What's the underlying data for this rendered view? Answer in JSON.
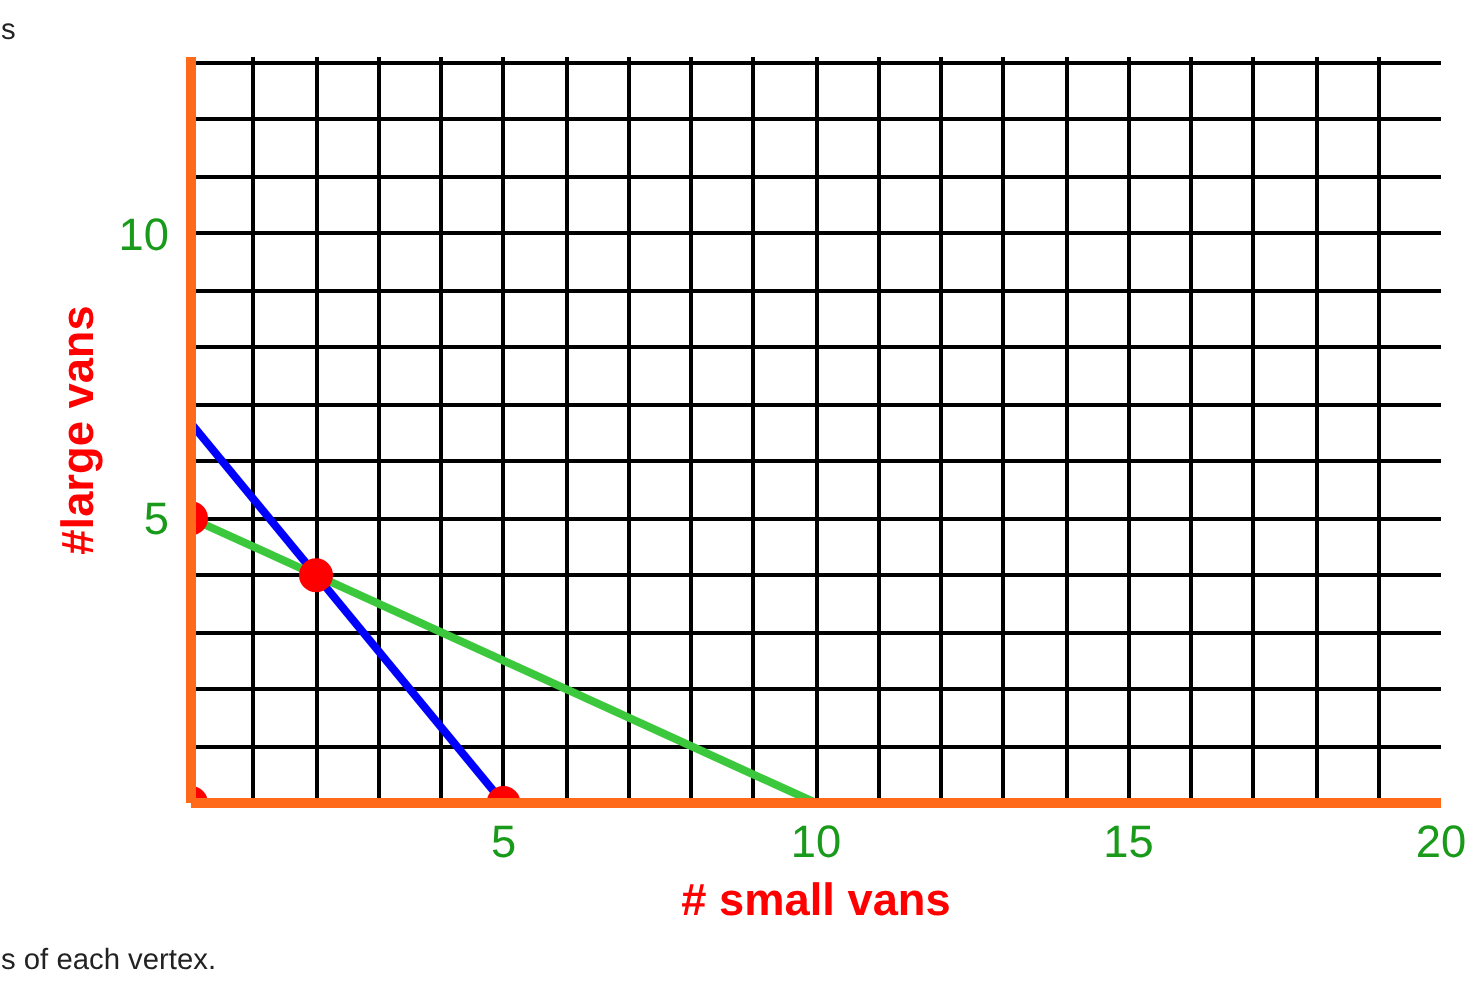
{
  "chart_data": {
    "type": "line",
    "xlabel": "# small vans",
    "ylabel": "#large vans",
    "xlim": [
      0,
      20
    ],
    "ylim": [
      0,
      13.1
    ],
    "xticks": [
      {
        "value": 1,
        "label": null
      },
      {
        "value": 2,
        "label": null
      },
      {
        "value": 3,
        "label": null
      },
      {
        "value": 4,
        "label": null
      },
      5,
      {
        "value": 6,
        "label": null
      },
      {
        "value": 7,
        "label": null
      },
      {
        "value": 8,
        "label": null
      },
      {
        "value": 9,
        "label": null
      },
      10,
      {
        "value": 11,
        "label": null
      },
      {
        "value": 12,
        "label": null
      },
      {
        "value": 13,
        "label": null
      },
      {
        "value": 14,
        "label": null
      },
      15,
      {
        "value": 16,
        "label": null
      },
      {
        "value": 17,
        "label": null
      },
      {
        "value": 18,
        "label": null
      },
      {
        "value": 19,
        "label": null
      },
      20
    ],
    "yticks": [
      {
        "value": 1,
        "label": null
      },
      {
        "value": 2,
        "label": null
      },
      {
        "value": 3,
        "label": null
      },
      {
        "value": 4,
        "label": null
      },
      5,
      {
        "value": 6,
        "label": null
      },
      {
        "value": 7,
        "label": null
      },
      {
        "value": 8,
        "label": null
      },
      {
        "value": 9,
        "label": null
      },
      10,
      {
        "value": 11,
        "label": null
      },
      {
        "value": 12,
        "label": null
      },
      {
        "value": 13,
        "label": null
      }
    ],
    "grid": true,
    "series": [
      {
        "color": "#0000ff",
        "x": [
          0,
          5
        ],
        "values": [
          6.67,
          0
        ]
      },
      {
        "color": "#3cc83c",
        "x": [
          0,
          10
        ],
        "values": [
          5,
          0
        ]
      },
      {
        "type": "scatter",
        "color": "#ff0000",
        "marker": "circle",
        "x": [
          0,
          0,
          2,
          5
        ],
        "values": [
          0,
          5,
          4,
          0
        ]
      }
    ],
    "annotations": [
      "s",
      "s of each vertex."
    ]
  }
}
